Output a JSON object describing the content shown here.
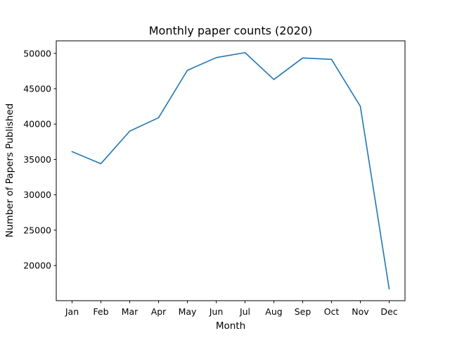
{
  "chart_data": {
    "type": "line",
    "title": "Monthly paper counts (2020)",
    "xlabel": "Month",
    "ylabel": "Number of Papers Published",
    "categories": [
      "Jan",
      "Feb",
      "Mar",
      "Apr",
      "May",
      "Jun",
      "Jul",
      "Aug",
      "Sep",
      "Oct",
      "Nov",
      "Dec"
    ],
    "series": [
      {
        "values": [
          36100,
          34400,
          39000,
          40900,
          47600,
          49400,
          50100,
          46300,
          49350,
          49150,
          42500,
          16700
        ],
        "color": "#1f77b4"
      }
    ],
    "yticks": [
      20000,
      25000,
      30000,
      35000,
      40000,
      45000,
      50000
    ],
    "ylim": [
      15030,
      51770
    ],
    "grid": false,
    "legend": "none"
  }
}
